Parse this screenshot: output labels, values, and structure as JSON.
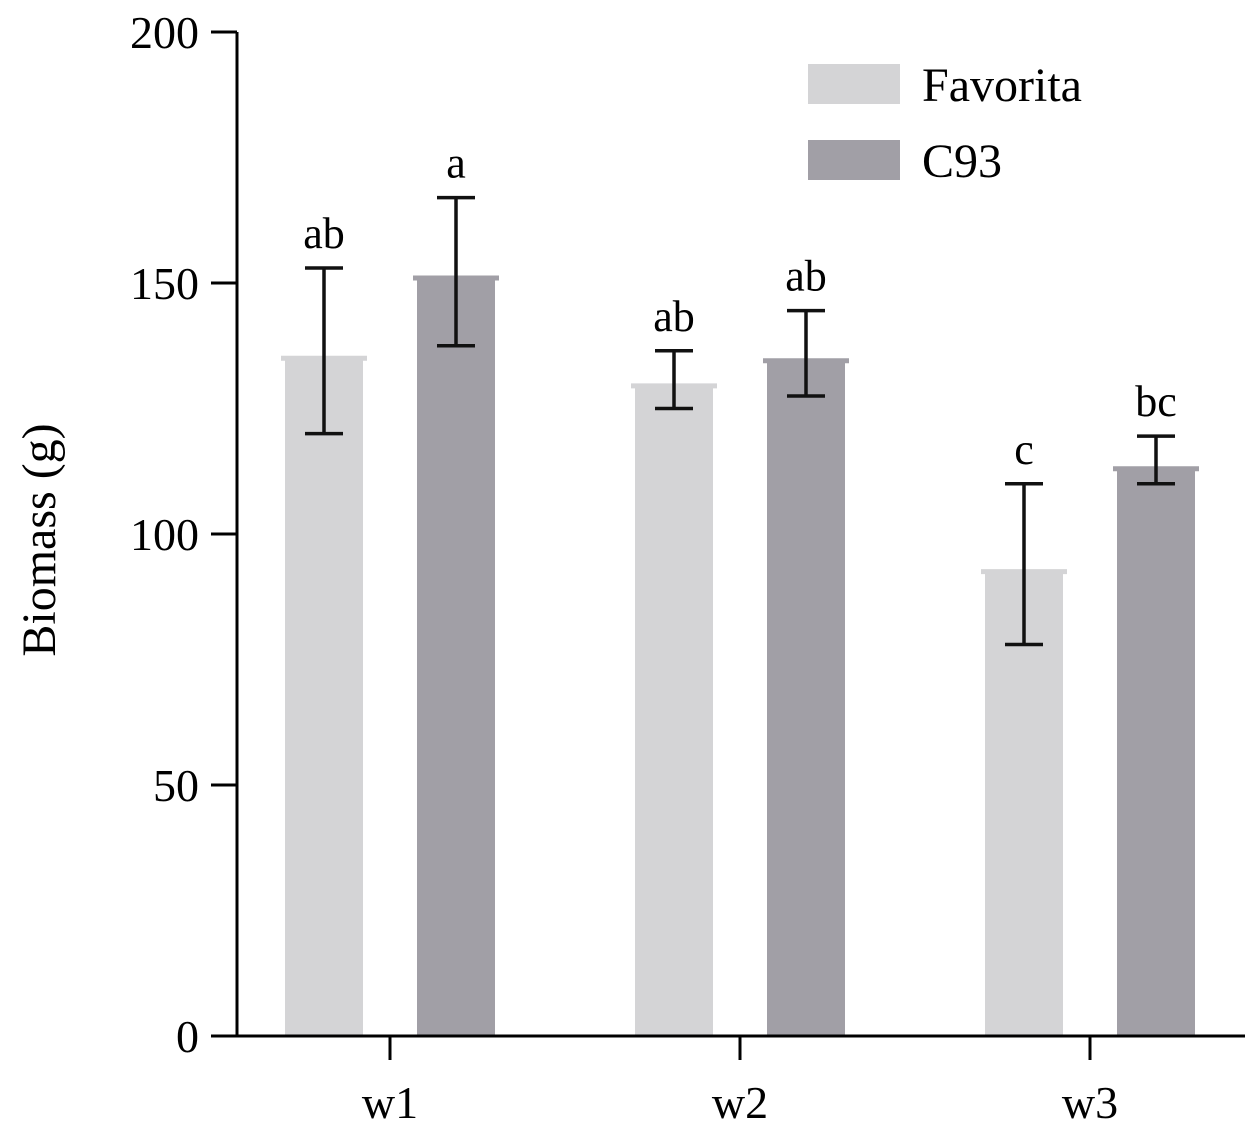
{
  "chart_data": {
    "type": "bar",
    "categories": [
      "w1",
      "w2",
      "w3"
    ],
    "series": [
      {
        "name": "Favorita",
        "color": "#d4d4d6",
        "values": [
          135,
          129.5,
          92.5
        ],
        "errors": [
          [
            120,
            153
          ],
          [
            125,
            136.5
          ],
          [
            78,
            110
          ]
        ],
        "labels": [
          "ab",
          "ab",
          "c"
        ]
      },
      {
        "name": "C93",
        "color": "#a19fa6",
        "values": [
          151,
          134.5,
          113
        ],
        "errors": [
          [
            137.5,
            167
          ],
          [
            127.5,
            144.5
          ],
          [
            110,
            119.5
          ]
        ],
        "labels": [
          "a",
          "ab",
          "bc"
        ]
      }
    ],
    "ylabel": "Biomass (g)",
    "xlabel": "",
    "ylim": [
      0,
      200
    ],
    "yticks": [
      0,
      50,
      100,
      150,
      200
    ],
    "legend_position": "top-right",
    "grid": false
  }
}
